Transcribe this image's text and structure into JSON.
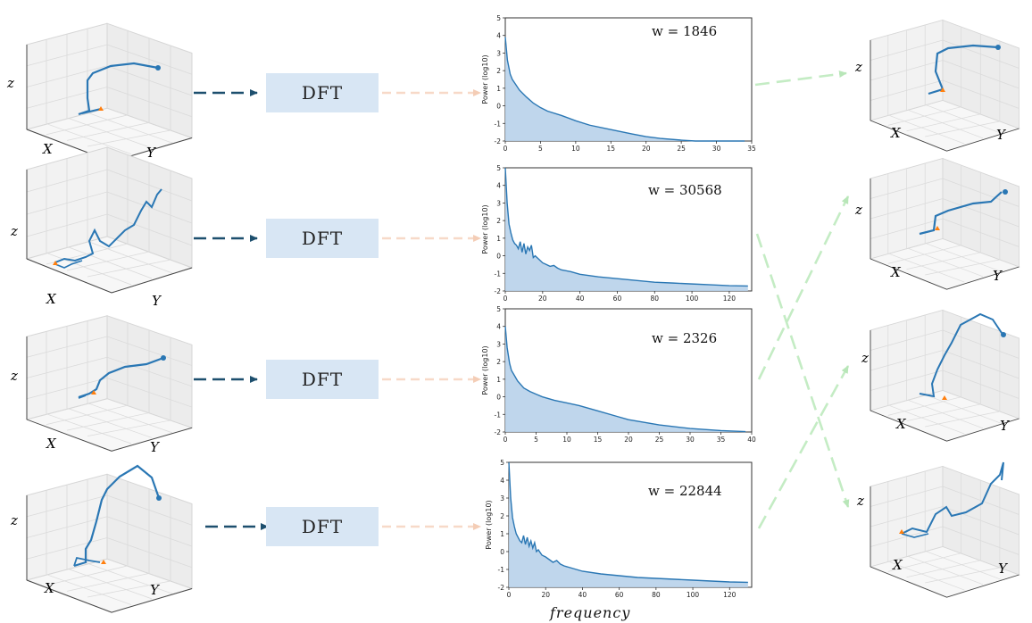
{
  "dft_label": "DFT",
  "axis": {
    "x": "X",
    "y": "Y",
    "z": "z"
  },
  "frequency_label": "frequency",
  "power_ylabel": "Power (log10)",
  "colors": {
    "trajectory": "#2a77b4",
    "start_marker": "#ff7f0e",
    "fill": "#b8d2ea",
    "dft_box": "#d8e6f4",
    "dark_arrow": "#1d4f6e",
    "peach_arrow": "#f7d9c8",
    "green_arrow": "#c4ecc4"
  },
  "chart_data": [
    {
      "type": "area",
      "w_label": "w = 1846",
      "w_value": 1846,
      "xlim": [
        0,
        35
      ],
      "ylim": [
        -2,
        5
      ],
      "xticks": [
        "0",
        "5",
        "10",
        "15",
        "20",
        "25",
        "30",
        "35"
      ],
      "yticks": [
        "-2",
        "-1",
        "0",
        "1",
        "2",
        "3",
        "4",
        "5"
      ],
      "x": [
        0,
        0.3,
        0.7,
        1,
        1.5,
        2,
        3,
        4,
        5,
        6,
        8,
        10,
        12,
        15,
        18,
        20,
        22,
        25,
        27,
        30,
        34
      ],
      "y": [
        3.9,
        2.6,
        1.8,
        1.5,
        1.2,
        0.9,
        0.5,
        0.15,
        -0.1,
        -0.3,
        -0.55,
        -0.85,
        -1.1,
        -1.35,
        -1.6,
        -1.75,
        -1.85,
        -1.95,
        -2.0,
        -2.0,
        -2.0
      ]
    },
    {
      "type": "area",
      "w_label": "w = 30568",
      "w_value": 30568,
      "xlim": [
        0,
        132
      ],
      "ylim": [
        -2,
        5
      ],
      "xticks": [
        "0",
        "20",
        "40",
        "60",
        "80",
        "100",
        "120"
      ],
      "yticks": [
        "-2",
        "-1",
        "0",
        "1",
        "2",
        "3",
        "4",
        "5"
      ],
      "x": [
        0,
        1,
        2,
        3,
        4,
        5,
        6,
        7,
        8,
        9,
        10,
        11,
        12,
        13,
        14,
        15,
        16,
        18,
        20,
        22,
        24,
        26,
        28,
        30,
        35,
        40,
        50,
        60,
        70,
        80,
        90,
        100,
        110,
        120,
        130
      ],
      "y": [
        5,
        3,
        1.8,
        1.3,
        0.9,
        0.7,
        0.6,
        0.4,
        0.8,
        0.2,
        0.7,
        0.1,
        0.5,
        0.3,
        0.6,
        -0.1,
        0.0,
        -0.2,
        -0.4,
        -0.5,
        -0.6,
        -0.55,
        -0.7,
        -0.8,
        -0.9,
        -1.05,
        -1.2,
        -1.3,
        -1.4,
        -1.5,
        -1.55,
        -1.6,
        -1.65,
        -1.7,
        -1.72
      ]
    },
    {
      "type": "area",
      "w_label": "w = 2326",
      "w_value": 2326,
      "xlim": [
        0,
        40
      ],
      "ylim": [
        -2,
        5
      ],
      "xticks": [
        "0",
        "5",
        "10",
        "15",
        "20",
        "25",
        "30",
        "35",
        "40"
      ],
      "yticks": [
        "-2",
        "-1",
        "0",
        "1",
        "2",
        "3",
        "4",
        "5"
      ],
      "x": [
        0,
        0.3,
        0.7,
        1,
        1.5,
        2,
        3,
        4,
        5,
        6,
        7,
        8,
        10,
        12,
        15,
        18,
        20,
        25,
        30,
        35,
        39
      ],
      "y": [
        4.0,
        2.8,
        1.9,
        1.5,
        1.2,
        0.9,
        0.5,
        0.3,
        0.15,
        0.0,
        -0.1,
        -0.2,
        -0.35,
        -0.5,
        -0.8,
        -1.1,
        -1.3,
        -1.6,
        -1.8,
        -1.92,
        -1.98
      ]
    },
    {
      "type": "area",
      "w_label": "w = 22844",
      "w_value": 22844,
      "xlim": [
        0,
        132
      ],
      "ylim": [
        -2,
        5
      ],
      "xticks": [
        "0",
        "20",
        "40",
        "60",
        "80",
        "100",
        "120"
      ],
      "yticks": [
        "-2",
        "-1",
        "0",
        "1",
        "2",
        "3",
        "4",
        "5"
      ],
      "x": [
        0,
        1,
        2,
        3,
        4,
        5,
        6,
        7,
        8,
        9,
        10,
        11,
        12,
        13,
        14,
        15,
        16,
        18,
        20,
        22,
        24,
        26,
        28,
        30,
        35,
        40,
        50,
        60,
        70,
        80,
        90,
        100,
        110,
        120,
        130
      ],
      "y": [
        5,
        3,
        1.9,
        1.4,
        1.0,
        0.8,
        0.6,
        0.5,
        0.9,
        0.4,
        0.8,
        0.3,
        0.6,
        0.2,
        0.5,
        0.0,
        0.1,
        -0.2,
        -0.3,
        -0.45,
        -0.6,
        -0.5,
        -0.7,
        -0.8,
        -0.95,
        -1.1,
        -1.25,
        -1.35,
        -1.45,
        -1.5,
        -1.55,
        -1.6,
        -1.65,
        -1.7,
        -1.72
      ]
    }
  ]
}
